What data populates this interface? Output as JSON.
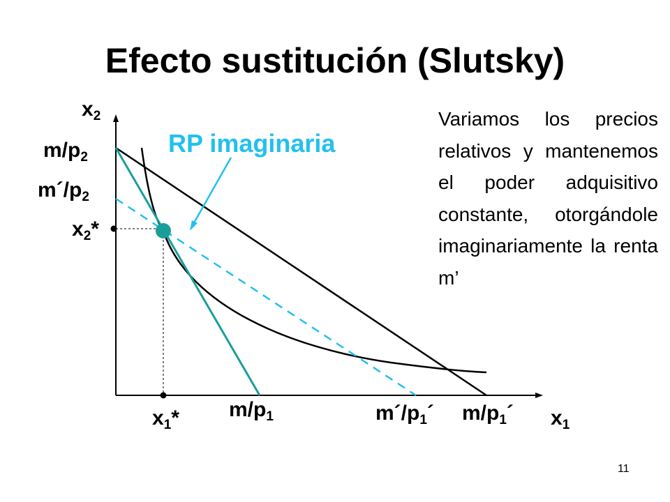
{
  "title": "Efecto sustitución (Slutsky)",
  "callout": "RP imaginaria",
  "description": "Variamos los precios relativos y mantenemos el poder adquisitivo constante, otorgándole imaginariamente la renta m’",
  "page_number": "11",
  "axis_labels": {
    "y": {
      "base": "x",
      "sub": "2"
    },
    "x": {
      "base": "x",
      "sub": "1"
    }
  },
  "y_ticks": {
    "m_p2": {
      "base": "m/p",
      "sub": "2",
      "sup": ""
    },
    "mprime_p2": {
      "base": "m´/p",
      "sub": "2",
      "sup": ""
    },
    "x2_star": {
      "base": "x",
      "sub": "2",
      "sup": "*"
    }
  },
  "x_ticks": {
    "x1_star": {
      "base": "x",
      "sub": "1",
      "sup": "*"
    },
    "m_p1": {
      "base": "m/p",
      "sub": "1",
      "sup": ""
    },
    "mprime_p1prime": {
      "base": "m´/p",
      "sub": "1",
      "sup": "´"
    },
    "m_p1prime": {
      "base": "m/p",
      "sub": "1",
      "sup": "´"
    }
  },
  "colors": {
    "axes": "#000000",
    "original_budget": "#1a9e9a",
    "imaginary_budget": "#22c0ee",
    "final_budget": "#000000",
    "indifference_curve": "#000000",
    "point": "#1a9e9a",
    "callout_text": "#22c0ee"
  }
}
